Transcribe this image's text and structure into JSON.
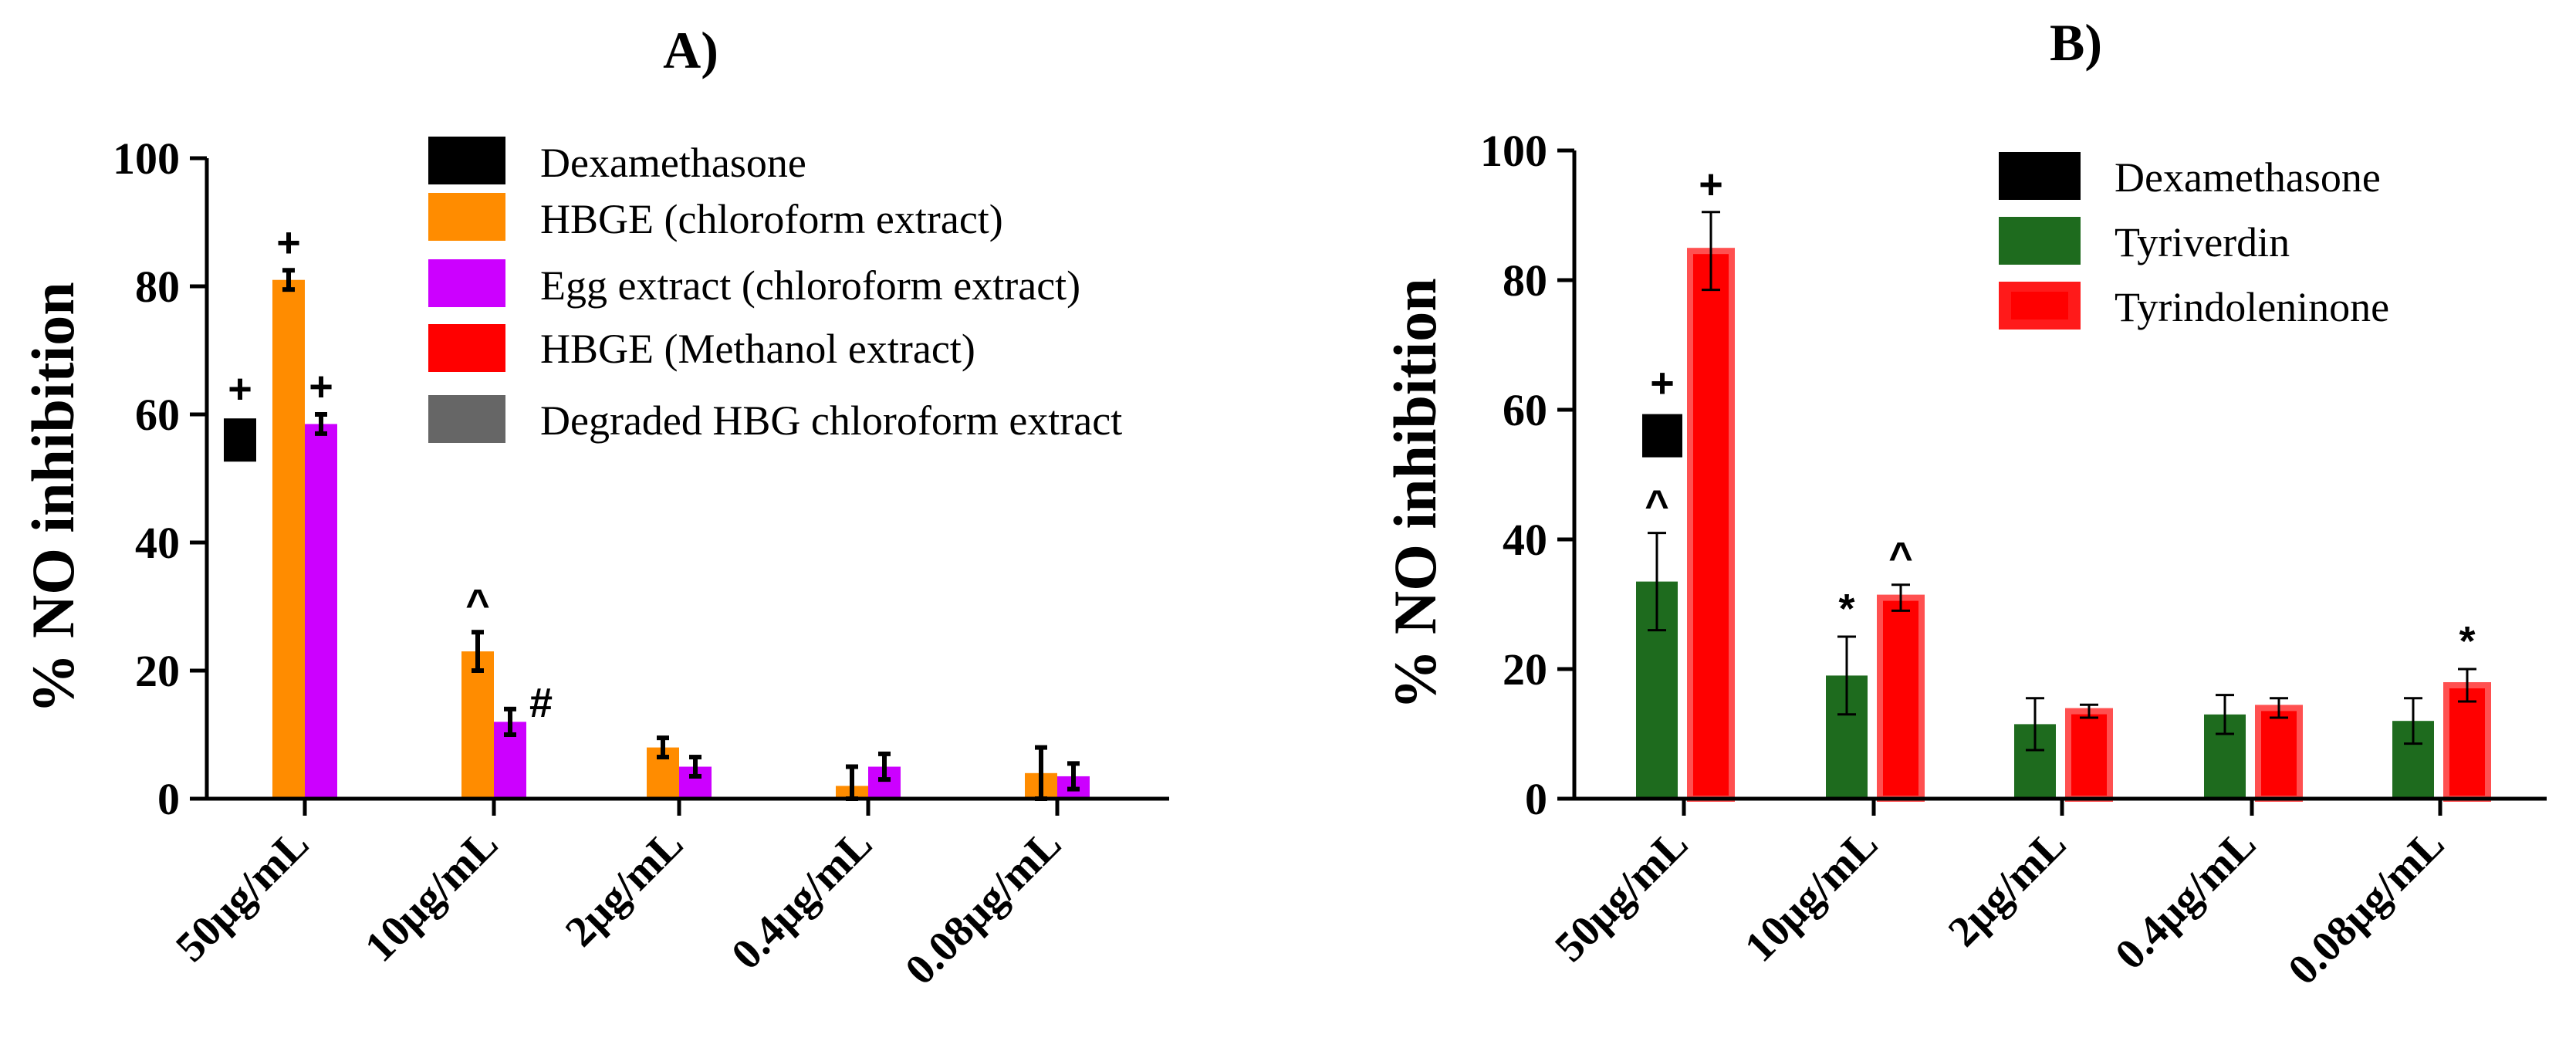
{
  "chart_data": [
    {
      "type": "bar",
      "title": "A)",
      "xlabel": "",
      "ylabel": "% NO inhibition",
      "ylim": [
        0,
        100
      ],
      "yticks": [
        "0",
        "20",
        "40",
        "60",
        "80",
        "100"
      ],
      "categories": [
        "50μg/mL",
        "10μg/mL",
        "2μg/mL",
        "0.4μg/mL",
        "0.08μg/mL"
      ],
      "legend_position": "top-right",
      "series": [
        {
          "name": "Dexamethasone",
          "color": "#000000"
        },
        {
          "name": "HBGE (chloroform extract)",
          "color": "#FF8C00",
          "values": [
            81,
            23,
            8,
            2,
            4
          ],
          "errors": [
            1.5,
            3,
            1.5,
            3,
            4
          ],
          "annotations": [
            "+",
            "^",
            "",
            "",
            ""
          ]
        },
        {
          "name": "Egg extract (chloroform extract)",
          "color": "#CC00FF",
          "values": [
            58.5,
            12,
            5,
            5,
            3.5
          ],
          "errors": [
            1.5,
            2,
            1.5,
            2,
            2
          ],
          "annotations": [
            "+",
            "#",
            "",
            "",
            ""
          ]
        },
        {
          "name": "HBGE (Methanol extract)",
          "color": "#FF0000"
        },
        {
          "name": "Degraded HBG chloroform extract",
          "color": "#666666"
        }
      ],
      "reference": {
        "name": "Dexamethasone",
        "value": 56,
        "annotation": "+"
      }
    },
    {
      "type": "bar",
      "title": "B)",
      "xlabel": "",
      "ylabel": "% NO inhibition",
      "ylim": [
        0,
        100
      ],
      "yticks": [
        "0",
        "20",
        "40",
        "60",
        "80",
        "100"
      ],
      "categories": [
        "50μg/mL",
        "10μg/mL",
        "2μg/mL",
        "0.4μg/mL",
        "0.08μg/mL"
      ],
      "legend_position": "top-right",
      "series": [
        {
          "name": "Dexamethasone",
          "color": "#000000"
        },
        {
          "name": "Tyriverdin",
          "color": "#1E6B1E",
          "values": [
            33.5,
            19,
            11.5,
            13,
            12
          ],
          "errors": [
            7.5,
            6,
            4,
            3,
            3.5
          ],
          "annotations": [
            "^",
            "*",
            "",
            "",
            ""
          ]
        },
        {
          "name": "Tyrindoleninone",
          "color": "#FF1A1A",
          "values": [
            84.5,
            31,
            13.5,
            14,
            17.5
          ],
          "errors": [
            6,
            2,
            1,
            1.5,
            2.5
          ],
          "annotations": [
            "+",
            "^",
            "",
            "",
            "*"
          ]
        }
      ],
      "reference": {
        "name": "Dexamethasone",
        "value": 56,
        "annotation": "+"
      }
    }
  ]
}
